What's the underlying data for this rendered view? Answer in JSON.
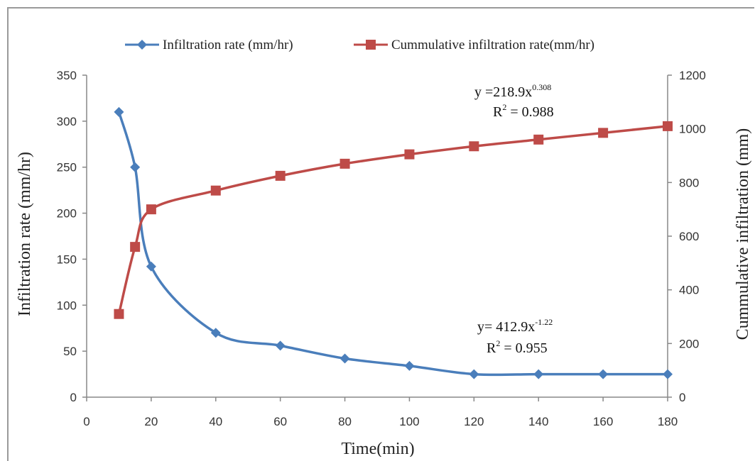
{
  "chart_data": {
    "type": "line",
    "title": "",
    "xlabel": "Time(min)",
    "ylabel": "Infiltration rate (mm/hr)",
    "y2label": "Cummulative infiltration (mm)",
    "xlim": [
      0,
      180
    ],
    "ylim": [
      0,
      350
    ],
    "y2lim": [
      0,
      1200
    ],
    "x_ticks": [
      "0",
      "20",
      "40",
      "60",
      "80",
      "100",
      "120",
      "140",
      "160",
      "180"
    ],
    "y_ticks": [
      "0",
      "50",
      "100",
      "150",
      "200",
      "250",
      "300",
      "350"
    ],
    "y2_ticks": [
      "0",
      "200",
      "400",
      "600",
      "800",
      "1000",
      "1200"
    ],
    "grid": false,
    "legend_position": "top",
    "series": [
      {
        "name": "Infiltration rate (mm/hr)",
        "axis": "left",
        "color": "#4a7ebb",
        "marker": "diamond",
        "x": [
          10,
          15,
          20,
          40,
          60,
          80,
          100,
          120,
          140,
          160,
          180
        ],
        "values": [
          310,
          250,
          142,
          70,
          56,
          42,
          34,
          25,
          25,
          25,
          25
        ]
      },
      {
        "name": "Cummulative infiltration rate(mm/hr)",
        "axis": "right",
        "color": "#be4b48",
        "marker": "square",
        "x": [
          10,
          15,
          20,
          40,
          60,
          80,
          100,
          120,
          140,
          160,
          180
        ],
        "values": [
          310,
          560,
          700,
          770,
          825,
          870,
          905,
          935,
          960,
          985,
          1010
        ]
      }
    ],
    "annotations": [
      {
        "id": "cum",
        "line1_base": "y =218.9x",
        "line1_sup": "0.308",
        "line2_base": "R",
        "line2_sup": "2",
        "line2_rest": " = 0.988"
      },
      {
        "id": "rate",
        "line1_base": "y= 412.9x",
        "line1_sup": "-1.22",
        "line2_base": "R",
        "line2_sup": "2",
        "line2_rest": " = 0.955"
      }
    ]
  }
}
